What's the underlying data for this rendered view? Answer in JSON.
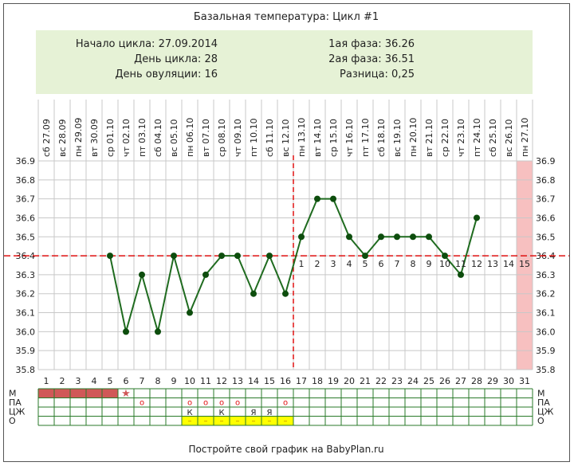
{
  "title": "Базальная температура: Цикл #1",
  "info": {
    "cycle_start": "Начало цикла: 27.09.2014",
    "cycle_day": "День цикла: 28",
    "ovulation_day": "День овуляции: 16",
    "phase1": "1ая фаза: 36.26",
    "phase2": "2ая фаза: 36.51",
    "difference": "Разница: 0,25"
  },
  "footer": "Постройте свой график на BabyPlan.ru",
  "colors": {
    "line": "#1f6b1f",
    "marker": "#0d4d0d",
    "coverline": "#e01010",
    "phase2_labels": "#e07070",
    "info_bg": "#e6f2d6",
    "grid": "#c8c8c8",
    "period_cell": "#d05858",
    "yellow_cell": "#ffff00",
    "last_day_bg": "#f7c0c0"
  },
  "chart_data": {
    "type": "line",
    "title": "Базальная температура: Цикл #1",
    "ylim": [
      35.8,
      36.9
    ],
    "yticks": [
      "36.9",
      "36.8",
      "36.7",
      "36.6",
      "36.5",
      "36.4",
      "36.3",
      "36.2",
      "36.1",
      "36.0",
      "35.9",
      "35.8"
    ],
    "days": [
      1,
      2,
      3,
      4,
      5,
      6,
      7,
      8,
      9,
      10,
      11,
      12,
      13,
      14,
      15,
      16,
      17,
      18,
      19,
      20,
      21,
      22,
      23,
      24,
      25,
      26,
      27,
      28,
      29,
      30,
      31
    ],
    "weekdays": [
      "сб",
      "вс",
      "пн",
      "вт",
      "ср",
      "чт",
      "пт",
      "сб",
      "вс",
      "пн",
      "вт",
      "ср",
      "чт",
      "пт",
      "сб",
      "вс",
      "пн",
      "вт",
      "ср",
      "чт",
      "пт",
      "сб",
      "вс",
      "пн",
      "вт",
      "ср",
      "чт",
      "пт",
      "сб",
      "вс",
      "пн"
    ],
    "dates": [
      "27.09",
      "28.09",
      "29.09",
      "30.09",
      "01.10",
      "02.10",
      "03.10",
      "04.10",
      "05.10",
      "06.10",
      "07.10",
      "08.10",
      "09.10",
      "10.10",
      "11.10",
      "12.10",
      "13.10",
      "14.10",
      "15.10",
      "16.10",
      "17.10",
      "18.10",
      "19.10",
      "20.10",
      "21.10",
      "22.10",
      "23.10",
      "24.10",
      "25.10",
      "26.10",
      "27.10"
    ],
    "temperatures": [
      null,
      null,
      null,
      null,
      36.4,
      36.0,
      36.3,
      36.0,
      36.4,
      36.1,
      36.3,
      36.4,
      36.4,
      36.2,
      36.4,
      36.2,
      36.5,
      36.7,
      36.7,
      36.5,
      36.4,
      36.5,
      36.5,
      36.5,
      36.5,
      36.4,
      36.3,
      36.6,
      null,
      null,
      null
    ],
    "coverline": 36.4,
    "ovulation_day": 16,
    "highlight_day": 31,
    "phase2_labels": [
      "1",
      "2",
      "3",
      "4",
      "5",
      "6",
      "7",
      "8",
      "9",
      "10",
      "11",
      "12",
      "13",
      "14",
      "15"
    ],
    "phase2_start_day": 17
  },
  "table": {
    "rows": [
      "М",
      "ПА",
      "ЦЖ",
      "О"
    ],
    "menstruation_days": [
      1,
      2,
      3,
      4,
      5
    ],
    "menstruation_star_day": 6,
    "pa_days": [
      7,
      10,
      11,
      12,
      13,
      16
    ],
    "pa_mark": "o",
    "cj": [
      {
        "day": 10,
        "mark": "К"
      },
      {
        "day": 12,
        "mark": "К"
      },
      {
        "day": 14,
        "mark": "Я"
      },
      {
        "day": 15,
        "mark": "Я"
      }
    ],
    "o_days": [
      10,
      11,
      12,
      13,
      14,
      15,
      16
    ],
    "o_mark": "–"
  }
}
